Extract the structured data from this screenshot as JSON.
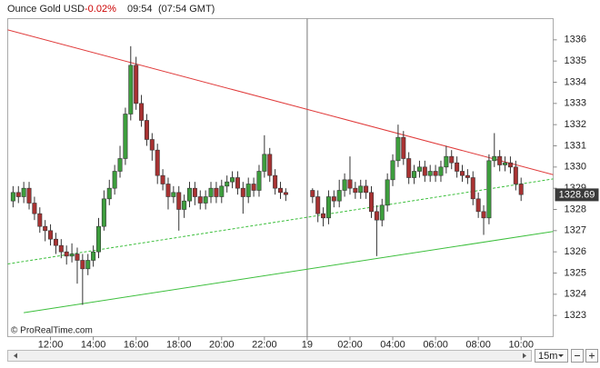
{
  "header": {
    "instrument": "Ounce Gold USD",
    "change": "-0.02%",
    "time": "09:54",
    "gmt": "(07:54 GMT)"
  },
  "chart_data": {
    "type": "candlestick",
    "open": [
      1328.4,
      1328.8,
      1328.6,
      1329.0,
      1328.3,
      1327.8,
      1327.2,
      1327.0,
      1326.6,
      1326.3,
      1326.0,
      1325.8,
      1325.9,
      1325.6,
      1325.2,
      1325.6,
      1326.0,
      1327.2,
      1328.5,
      1329.0,
      1329.8,
      1330.4,
      1332.5,
      1334.8,
      1333.0,
      1332.2,
      1331.3,
      1330.8,
      1329.6,
      1329.2,
      1328.6,
      1328.8,
      1328.0,
      1328.4,
      1329.0,
      1328.6,
      1328.3,
      1328.6,
      1329.0,
      1328.6,
      1329.1,
      1329.3,
      1329.5,
      1329.0,
      1328.6,
      1329.2,
      1328.9,
      1329.8,
      1330.6,
      1329.6,
      1329.0,
      1328.8,
      null,
      null,
      null,
      null,
      1328.9,
      1328.6,
      1327.8,
      1327.6,
      1328.6,
      1328.4,
      1328.9,
      1329.4,
      1329.0,
      1328.8,
      1329.1,
      1328.8,
      1327.9,
      1327.5,
      1328.2,
      1329.4,
      1330.3,
      1331.4,
      1330.4,
      1329.5,
      1329.8,
      1330.0,
      1329.6,
      1329.8,
      1329.6,
      1330.0,
      1330.5,
      1330.2,
      1329.8,
      1329.6,
      1329.5,
      1328.5,
      1327.9,
      1327.6,
      1330.3,
      1330.5,
      1330.1,
      1330.2,
      1330.0,
      1329.2
    ],
    "high": [
      1329.1,
      1329.1,
      1329.3,
      1329.3,
      1328.6,
      1328.1,
      1327.5,
      1327.3,
      1326.9,
      1326.6,
      1326.3,
      1326.4,
      1326.2,
      1325.9,
      1325.9,
      1326.3,
      1327.6,
      1328.9,
      1329.4,
      1330.1,
      1331.0,
      1332.8,
      1335.7,
      1335.2,
      1333.4,
      1332.5,
      1331.6,
      1331.1,
      1329.9,
      1329.5,
      1329.1,
      1329.1,
      1328.7,
      1329.3,
      1329.3,
      1328.9,
      1328.9,
      1329.3,
      1329.3,
      1329.4,
      1329.6,
      1329.8,
      1329.8,
      1329.3,
      1329.5,
      1329.5,
      1330.1,
      1331.5,
      1330.9,
      1329.9,
      1329.3,
      1329.0,
      null,
      null,
      null,
      null,
      1329.0,
      1328.9,
      1328.1,
      1328.9,
      1328.9,
      1329.4,
      1329.7,
      1330.5,
      1329.3,
      1329.4,
      1329.4,
      1329.1,
      1328.2,
      1328.5,
      1329.7,
      1330.6,
      1332.0,
      1331.7,
      1330.7,
      1330.1,
      1330.3,
      1330.3,
      1330.1,
      1330.1,
      1330.3,
      1331.0,
      1330.8,
      1330.5,
      1330.1,
      1329.9,
      1329.8,
      1328.8,
      1328.2,
      1330.6,
      1331.6,
      1330.8,
      1330.5,
      1330.5,
      1330.3,
      1329.5
    ],
    "low": [
      1328.1,
      1328.3,
      1328.3,
      1328.0,
      1327.5,
      1326.9,
      1326.5,
      1326.3,
      1325.9,
      1325.7,
      1325.4,
      1325.5,
      1324.5,
      1323.5,
      1324.9,
      1325.3,
      1325.7,
      1327.0,
      1328.2,
      1328.7,
      1329.5,
      1330.1,
      1332.2,
      1332.7,
      1331.9,
      1331.0,
      1330.3,
      1329.2,
      1328.9,
      1328.0,
      1328.3,
      1327.0,
      1327.6,
      1328.1,
      1328.2,
      1328.0,
      1328.0,
      1328.3,
      1328.3,
      1328.3,
      1328.8,
      1329.0,
      1328.7,
      1327.8,
      1328.3,
      1328.6,
      1328.6,
      1329.5,
      1329.3,
      1328.7,
      1328.5,
      1328.4,
      null,
      null,
      null,
      null,
      1328.3,
      1327.4,
      1327.2,
      1327.3,
      1328.1,
      1328.1,
      1328.6,
      1328.7,
      1328.5,
      1328.5,
      1328.5,
      1327.6,
      1325.8,
      1327.2,
      1327.9,
      1329.1,
      1330.0,
      1330.1,
      1329.2,
      1329.2,
      1329.5,
      1329.3,
      1329.3,
      1329.3,
      1329.3,
      1329.7,
      1329.9,
      1329.5,
      1329.3,
      1329.2,
      1328.2,
      1327.6,
      1326.8,
      1327.3,
      1330.0,
      1329.8,
      1329.8,
      1329.7,
      1328.9,
      1328.4
    ],
    "close": [
      1328.8,
      1328.6,
      1329.0,
      1328.3,
      1327.8,
      1327.2,
      1327.0,
      1326.6,
      1326.3,
      1326.0,
      1325.8,
      1325.9,
      1325.6,
      1325.2,
      1325.6,
      1326.0,
      1327.2,
      1328.5,
      1329.0,
      1329.8,
      1330.4,
      1332.5,
      1334.8,
      1333.0,
      1332.2,
      1331.3,
      1330.8,
      1329.6,
      1329.2,
      1328.6,
      1328.8,
      1328.0,
      1328.4,
      1329.0,
      1328.6,
      1328.3,
      1328.6,
      1329.0,
      1328.6,
      1329.1,
      1329.3,
      1329.5,
      1329.0,
      1328.6,
      1329.2,
      1328.9,
      1329.8,
      1330.6,
      1329.6,
      1329.0,
      1328.8,
      1328.7,
      null,
      null,
      null,
      null,
      1328.6,
      1327.8,
      1327.6,
      1328.6,
      1328.4,
      1328.9,
      1329.4,
      1329.0,
      1328.8,
      1329.1,
      1328.8,
      1327.9,
      1327.5,
      1328.2,
      1329.4,
      1330.3,
      1331.4,
      1330.4,
      1329.5,
      1329.8,
      1330.0,
      1329.6,
      1329.8,
      1329.6,
      1330.0,
      1330.5,
      1330.2,
      1329.8,
      1329.6,
      1329.5,
      1328.5,
      1327.9,
      1327.6,
      1330.3,
      1330.5,
      1330.1,
      1330.2,
      1330.0,
      1329.2,
      1328.7
    ],
    "up_color": "#3d9e3d",
    "down_color": "#a83232",
    "xlim": [
      -1,
      101
    ],
    "xticks": [
      {
        "value": 7,
        "label": "12:00"
      },
      {
        "value": 15,
        "label": "14:00"
      },
      {
        "value": 23,
        "label": "16:00"
      },
      {
        "value": 31,
        "label": "18:00"
      },
      {
        "value": 39,
        "label": "20:00"
      },
      {
        "value": 47,
        "label": "22:00"
      },
      {
        "value": 55,
        "label": "19"
      },
      {
        "value": 63,
        "label": "02:00"
      },
      {
        "value": 71,
        "label": "04:00"
      },
      {
        "value": 79,
        "label": "06:00"
      },
      {
        "value": 87,
        "label": "08:00"
      },
      {
        "value": 95,
        "label": "10:00"
      }
    ],
    "day_separator": 55,
    "ylim": [
      1322,
      1337
    ],
    "yticks": [
      1323,
      1324,
      1325,
      1326,
      1327,
      1328,
      1329,
      1330,
      1331,
      1332,
      1333,
      1334,
      1335,
      1336
    ],
    "last_price": 1328.69,
    "trendlines": [
      {
        "color": "#e03a3a",
        "dashed": false,
        "x": [
          -1,
          101
        ],
        "y": [
          1336.47,
          1329.64
        ]
      },
      {
        "color": "#3cbf3c",
        "dashed": false,
        "x": [
          2,
          101
        ],
        "y": [
          1323.13,
          1326.96
        ]
      },
      {
        "color": "#3cbf3c",
        "dashed": true,
        "x": [
          -1,
          101
        ],
        "y": [
          1325.43,
          1329.44
        ]
      }
    ],
    "source": "© ProRealTime.com",
    "timeframe": "15m"
  }
}
